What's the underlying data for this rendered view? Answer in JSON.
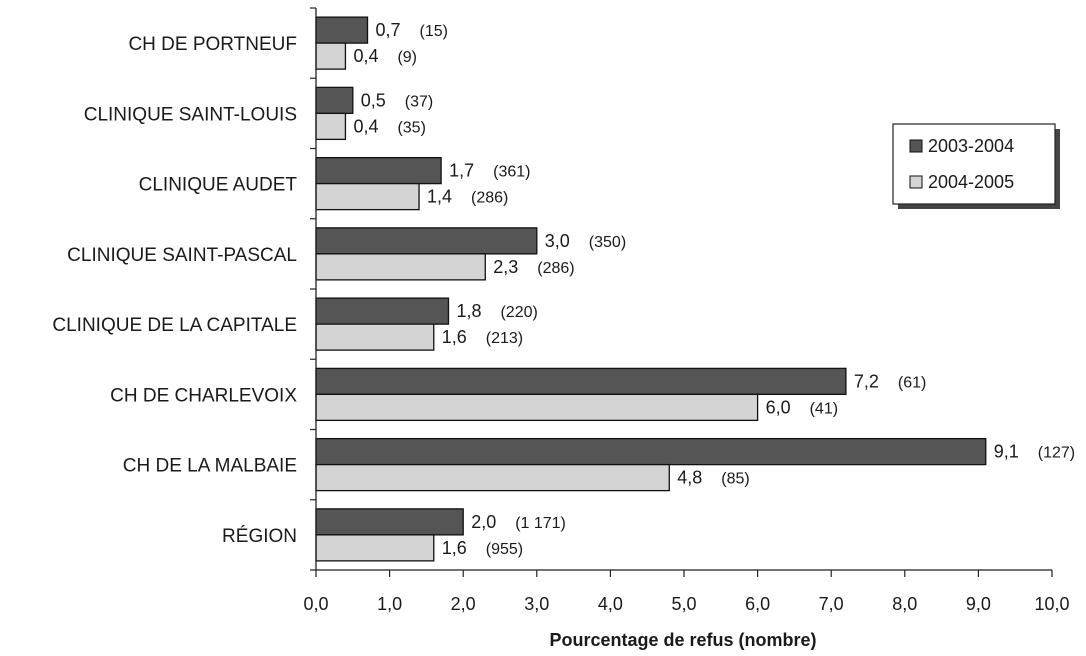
{
  "chart_data": {
    "type": "bar",
    "orientation": "horizontal",
    "categories": [
      "CH DE PORTNEUF",
      "CLINIQUE SAINT-LOUIS",
      "CLINIQUE AUDET",
      "CLINIQUE SAINT-PASCAL",
      "CLINIQUE DE LA CAPITALE",
      "CH DE CHARLEVOIX",
      "CH DE LA MALBAIE",
      "RÉGION"
    ],
    "series": [
      {
        "name": "2003-2004",
        "color": "#555555",
        "values": [
          0.7,
          0.5,
          1.7,
          3.0,
          1.8,
          7.2,
          9.1,
          2.0
        ],
        "value_labels": [
          "0,7",
          "0,5",
          "1,7",
          "3,0",
          "1,8",
          "7,2",
          "9,1",
          "2,0"
        ],
        "counts": [
          "(15)",
          "(37)",
          "(361)",
          "(350)",
          "(220)",
          "(61)",
          "(127)",
          "(1 171)"
        ]
      },
      {
        "name": "2004-2005",
        "color": "#d4d4d4",
        "values": [
          0.4,
          0.4,
          1.4,
          2.3,
          1.6,
          6.0,
          4.8,
          1.6
        ],
        "value_labels": [
          "0,4",
          "0,4",
          "1,4",
          "2,3",
          "1,6",
          "6,0",
          "4,8",
          "1,6"
        ],
        "counts": [
          "(9)",
          "(35)",
          "(286)",
          "(286)",
          "(213)",
          "(41)",
          "(85)",
          "(955)"
        ]
      }
    ],
    "xlim": [
      0,
      10
    ],
    "ticks": [
      0,
      1,
      2,
      3,
      4,
      5,
      6,
      7,
      8,
      9,
      10
    ],
    "tick_labels": [
      "0,0",
      "1,0",
      "2,0",
      "3,0",
      "4,0",
      "5,0",
      "6,0",
      "7,0",
      "8,0",
      "9,0",
      "10,0"
    ],
    "xlabel": "Pourcentage de refus (nombre)",
    "title": "",
    "ylabel": "",
    "grid": false,
    "legend_position": "right"
  }
}
